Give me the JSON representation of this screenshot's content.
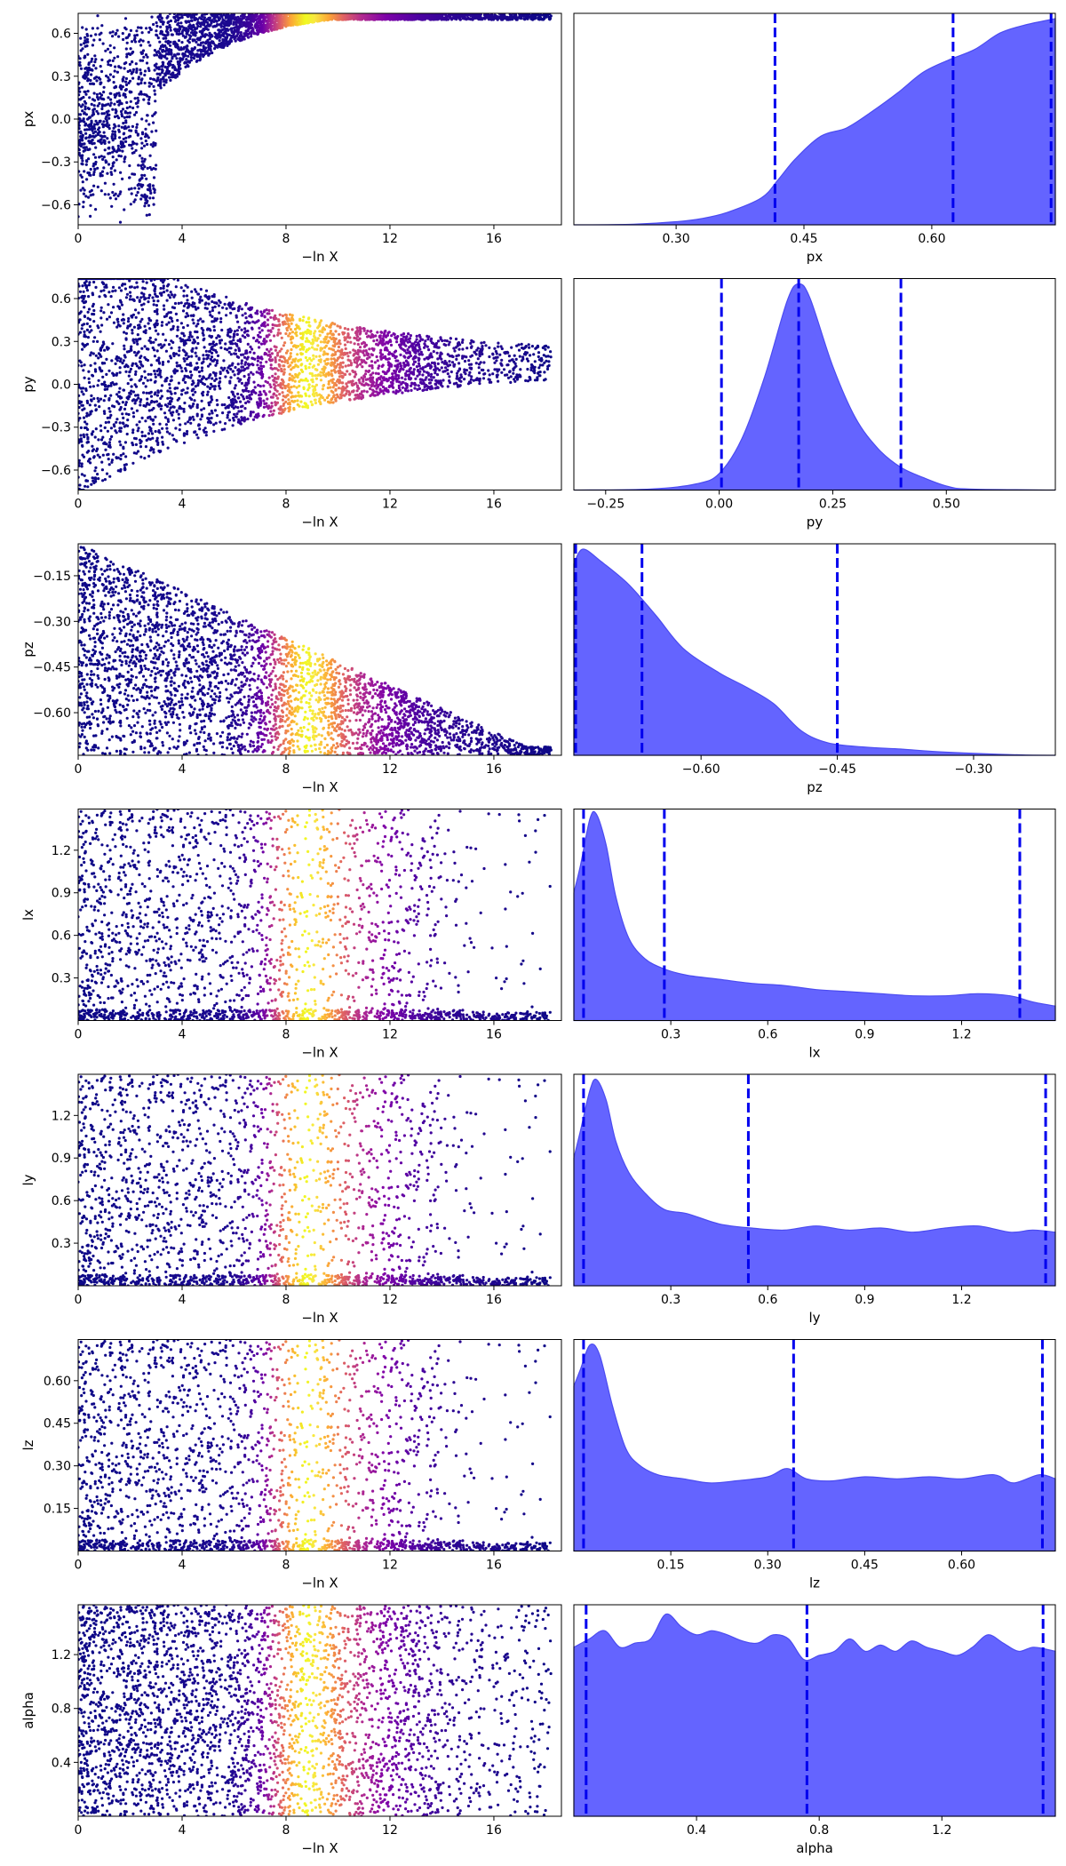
{
  "chart_data": {
    "type": "scatter",
    "figure": "nested sampling trace plot (dynesty style): left column = samples vs -ln X colored by importance weight, right column = 1-D marginal posterior with 2.5% / 50% / 97.5% quantile lines",
    "colormap": "plasma",
    "colors": {
      "posterior_fill": "#6464ff",
      "posterior_edge": "#4b4bf0",
      "quantile_line": "#0000ee",
      "frame": "#000000"
    },
    "shared_x_trace": {
      "label": "−ln X",
      "range": [
        0,
        18.6
      ],
      "ticks": [
        "0",
        "4",
        "8",
        "12",
        "16"
      ],
      "tick_values": [
        0,
        4,
        8,
        12,
        16
      ],
      "peak": 8.9
    },
    "rows": [
      {
        "param": "px",
        "trace": {
          "ylabel": "px",
          "ylim": [
            -0.74,
            0.74
          ],
          "ticks": [
            "0.6",
            "0.3",
            "0.0",
            "−0.3",
            "−0.6"
          ],
          "tick_values": [
            0.6,
            0.3,
            0.0,
            -0.3,
            -0.6
          ],
          "shape": "lower_boundary"
        },
        "hist": {
          "xlabel": "px",
          "xlim": [
            0.18,
            0.745
          ],
          "ticks": [
            "0.30",
            "0.45",
            "0.60"
          ],
          "tick_values": [
            0.3,
            0.45,
            0.6
          ],
          "quantiles": [
            0.416,
            0.625,
            0.74
          ],
          "density": [
            [
              0.18,
              0
            ],
            [
              0.25,
              0.003
            ],
            [
              0.3,
              0.015
            ],
            [
              0.33,
              0.03
            ],
            [
              0.36,
              0.06
            ],
            [
              0.4,
              0.13
            ],
            [
              0.42,
              0.22
            ],
            [
              0.44,
              0.32
            ],
            [
              0.47,
              0.43
            ],
            [
              0.5,
              0.47
            ],
            [
              0.53,
              0.55
            ],
            [
              0.56,
              0.64
            ],
            [
              0.59,
              0.74
            ],
            [
              0.62,
              0.8
            ],
            [
              0.65,
              0.85
            ],
            [
              0.68,
              0.93
            ],
            [
              0.71,
              0.97
            ],
            [
              0.745,
              1.0
            ]
          ]
        }
      },
      {
        "param": "py",
        "trace": {
          "ylabel": "py",
          "ylim": [
            -0.74,
            0.74
          ],
          "ticks": [
            "0.6",
            "0.3",
            "0.0",
            "−0.3",
            "−0.6"
          ],
          "tick_values": [
            0.6,
            0.3,
            0.0,
            -0.3,
            -0.6
          ],
          "shape": "funnel"
        },
        "hist": {
          "xlabel": "py",
          "xlim": [
            -0.32,
            0.74
          ],
          "ticks": [
            "−0.25",
            "0.00",
            "0.25",
            "0.50"
          ],
          "tick_values": [
            -0.25,
            0.0,
            0.25,
            0.5
          ],
          "quantiles": [
            0.005,
            0.175,
            0.4
          ],
          "density": [
            [
              -0.32,
              0
            ],
            [
              -0.15,
              0.005
            ],
            [
              -0.05,
              0.03
            ],
            [
              0.0,
              0.08
            ],
            [
              0.05,
              0.25
            ],
            [
              0.1,
              0.55
            ],
            [
              0.15,
              0.92
            ],
            [
              0.175,
              1.0
            ],
            [
              0.2,
              0.93
            ],
            [
              0.25,
              0.6
            ],
            [
              0.3,
              0.35
            ],
            [
              0.35,
              0.2
            ],
            [
              0.4,
              0.11
            ],
            [
              0.45,
              0.06
            ],
            [
              0.5,
              0.02
            ],
            [
              0.55,
              0.005
            ],
            [
              0.74,
              0
            ]
          ]
        }
      },
      {
        "param": "pz",
        "trace": {
          "ylabel": "pz",
          "ylim": [
            -0.74,
            -0.045
          ],
          "ticks": [
            "−0.15",
            "−0.30",
            "−0.45",
            "−0.60"
          ],
          "tick_values": [
            -0.15,
            -0.3,
            -0.45,
            -0.6
          ],
          "shape": "triangle_upper"
        },
        "hist": {
          "xlabel": "pz",
          "xlim": [
            -0.74,
            -0.21
          ],
          "ticks": [
            "−0.60",
            "−0.45",
            "−0.30"
          ],
          "tick_values": [
            -0.6,
            -0.45,
            -0.3
          ],
          "quantiles": [
            -0.738,
            -0.665,
            -0.45
          ],
          "density": [
            [
              -0.74,
              0.93
            ],
            [
              -0.73,
              1.0
            ],
            [
              -0.71,
              0.94
            ],
            [
              -0.68,
              0.83
            ],
            [
              -0.65,
              0.68
            ],
            [
              -0.62,
              0.52
            ],
            [
              -0.58,
              0.4
            ],
            [
              -0.55,
              0.33
            ],
            [
              -0.52,
              0.25
            ],
            [
              -0.49,
              0.12
            ],
            [
              -0.46,
              0.06
            ],
            [
              -0.42,
              0.04
            ],
            [
              -0.38,
              0.03
            ],
            [
              -0.33,
              0.015
            ],
            [
              -0.25,
              0.002
            ],
            [
              -0.21,
              0
            ]
          ]
        }
      },
      {
        "param": "lx",
        "trace": {
          "ylabel": "lx",
          "ylim": [
            0.0,
            1.49
          ],
          "ticks": [
            "1.2",
            "0.9",
            "0.6",
            "0.3"
          ],
          "tick_values": [
            1.2,
            0.9,
            0.6,
            0.3
          ],
          "shape": "uniform_dense_bottom"
        },
        "hist": {
          "xlabel": "lx",
          "xlim": [
            0.0,
            1.49
          ],
          "ticks": [
            "0.3",
            "0.6",
            "0.9",
            "1.2"
          ],
          "tick_values": [
            0.3,
            0.6,
            0.9,
            1.2
          ],
          "quantiles": [
            0.03,
            0.28,
            1.38
          ],
          "density": [
            [
              0,
              0.62
            ],
            [
              0.02,
              0.75
            ],
            [
              0.05,
              0.98
            ],
            [
              0.07,
              1.0
            ],
            [
              0.1,
              0.85
            ],
            [
              0.13,
              0.6
            ],
            [
              0.17,
              0.4
            ],
            [
              0.22,
              0.3
            ],
            [
              0.28,
              0.25
            ],
            [
              0.35,
              0.22
            ],
            [
              0.45,
              0.2
            ],
            [
              0.55,
              0.18
            ],
            [
              0.65,
              0.17
            ],
            [
              0.75,
              0.15
            ],
            [
              0.85,
              0.14
            ],
            [
              0.95,
              0.13
            ],
            [
              1.05,
              0.12
            ],
            [
              1.15,
              0.12
            ],
            [
              1.25,
              0.13
            ],
            [
              1.35,
              0.12
            ],
            [
              1.42,
              0.09
            ],
            [
              1.49,
              0.07
            ]
          ]
        }
      },
      {
        "param": "ly",
        "trace": {
          "ylabel": "ly",
          "ylim": [
            0.0,
            1.49
          ],
          "ticks": [
            "1.2",
            "0.9",
            "0.6",
            "0.3"
          ],
          "tick_values": [
            1.2,
            0.9,
            0.6,
            0.3
          ],
          "shape": "uniform_dense_bottom"
        },
        "hist": {
          "xlabel": "ly",
          "xlim": [
            0.0,
            1.49
          ],
          "ticks": [
            "0.3",
            "0.6",
            "0.9",
            "1.2"
          ],
          "tick_values": [
            0.3,
            0.6,
            0.9,
            1.2
          ],
          "quantiles": [
            0.03,
            0.54,
            1.46
          ],
          "density": [
            [
              0,
              0.62
            ],
            [
              0.02,
              0.75
            ],
            [
              0.05,
              0.95
            ],
            [
              0.07,
              1.0
            ],
            [
              0.1,
              0.9
            ],
            [
              0.13,
              0.7
            ],
            [
              0.17,
              0.55
            ],
            [
              0.22,
              0.45
            ],
            [
              0.28,
              0.37
            ],
            [
              0.35,
              0.35
            ],
            [
              0.45,
              0.3
            ],
            [
              0.55,
              0.28
            ],
            [
              0.65,
              0.27
            ],
            [
              0.75,
              0.29
            ],
            [
              0.85,
              0.27
            ],
            [
              0.95,
              0.28
            ],
            [
              1.05,
              0.26
            ],
            [
              1.15,
              0.28
            ],
            [
              1.25,
              0.29
            ],
            [
              1.35,
              0.26
            ],
            [
              1.42,
              0.27
            ],
            [
              1.49,
              0.26
            ]
          ]
        }
      },
      {
        "param": "lz",
        "trace": {
          "ylabel": "lz",
          "ylim": [
            0.0,
            0.745
          ],
          "ticks": [
            "0.60",
            "0.45",
            "0.30",
            "0.15"
          ],
          "tick_values": [
            0.6,
            0.45,
            0.3,
            0.15
          ],
          "shape": "uniform_dense_bottom"
        },
        "hist": {
          "xlabel": "lz",
          "xlim": [
            0.0,
            0.745
          ],
          "ticks": [
            "0.15",
            "0.30",
            "0.45",
            "0.60"
          ],
          "tick_values": [
            0.15,
            0.3,
            0.45,
            0.6
          ],
          "quantiles": [
            0.015,
            0.34,
            0.725
          ],
          "density": [
            [
              0,
              0.8
            ],
            [
              0.01,
              0.88
            ],
            [
              0.025,
              1.0
            ],
            [
              0.04,
              0.95
            ],
            [
              0.06,
              0.7
            ],
            [
              0.08,
              0.5
            ],
            [
              0.1,
              0.42
            ],
            [
              0.13,
              0.37
            ],
            [
              0.17,
              0.35
            ],
            [
              0.21,
              0.33
            ],
            [
              0.25,
              0.34
            ],
            [
              0.3,
              0.36
            ],
            [
              0.33,
              0.4
            ],
            [
              0.36,
              0.35
            ],
            [
              0.4,
              0.34
            ],
            [
              0.45,
              0.36
            ],
            [
              0.5,
              0.35
            ],
            [
              0.55,
              0.36
            ],
            [
              0.6,
              0.35
            ],
            [
              0.65,
              0.37
            ],
            [
              0.68,
              0.33
            ],
            [
              0.72,
              0.37
            ],
            [
              0.745,
              0.35
            ]
          ]
        }
      },
      {
        "param": "alpha",
        "trace": {
          "ylabel": "alpha",
          "ylim": [
            0.0,
            1.57
          ],
          "ticks": [
            "1.2",
            "0.8",
            "0.4"
          ],
          "tick_values": [
            1.2,
            0.8,
            0.4
          ],
          "shape": "uniform"
        },
        "hist": {
          "xlabel": "alpha",
          "xlim": [
            0.0,
            1.57
          ],
          "ticks": [
            "0.4",
            "0.8",
            "1.2"
          ],
          "tick_values": [
            0.4,
            0.8,
            1.2
          ],
          "quantiles": [
            0.04,
            0.76,
            1.53
          ],
          "density": [
            [
              0,
              0.82
            ],
            [
              0.05,
              0.86
            ],
            [
              0.1,
              0.9
            ],
            [
              0.15,
              0.82
            ],
            [
              0.2,
              0.84
            ],
            [
              0.25,
              0.86
            ],
            [
              0.3,
              0.98
            ],
            [
              0.35,
              0.92
            ],
            [
              0.4,
              0.88
            ],
            [
              0.45,
              0.9
            ],
            [
              0.5,
              0.88
            ],
            [
              0.55,
              0.85
            ],
            [
              0.6,
              0.84
            ],
            [
              0.65,
              0.88
            ],
            [
              0.7,
              0.86
            ],
            [
              0.75,
              0.76
            ],
            [
              0.8,
              0.78
            ],
            [
              0.85,
              0.8
            ],
            [
              0.9,
              0.86
            ],
            [
              0.95,
              0.8
            ],
            [
              1.0,
              0.83
            ],
            [
              1.05,
              0.8
            ],
            [
              1.1,
              0.85
            ],
            [
              1.15,
              0.82
            ],
            [
              1.2,
              0.8
            ],
            [
              1.25,
              0.78
            ],
            [
              1.3,
              0.82
            ],
            [
              1.35,
              0.88
            ],
            [
              1.4,
              0.84
            ],
            [
              1.45,
              0.8
            ],
            [
              1.5,
              0.82
            ],
            [
              1.57,
              0.8
            ]
          ]
        }
      }
    ]
  }
}
